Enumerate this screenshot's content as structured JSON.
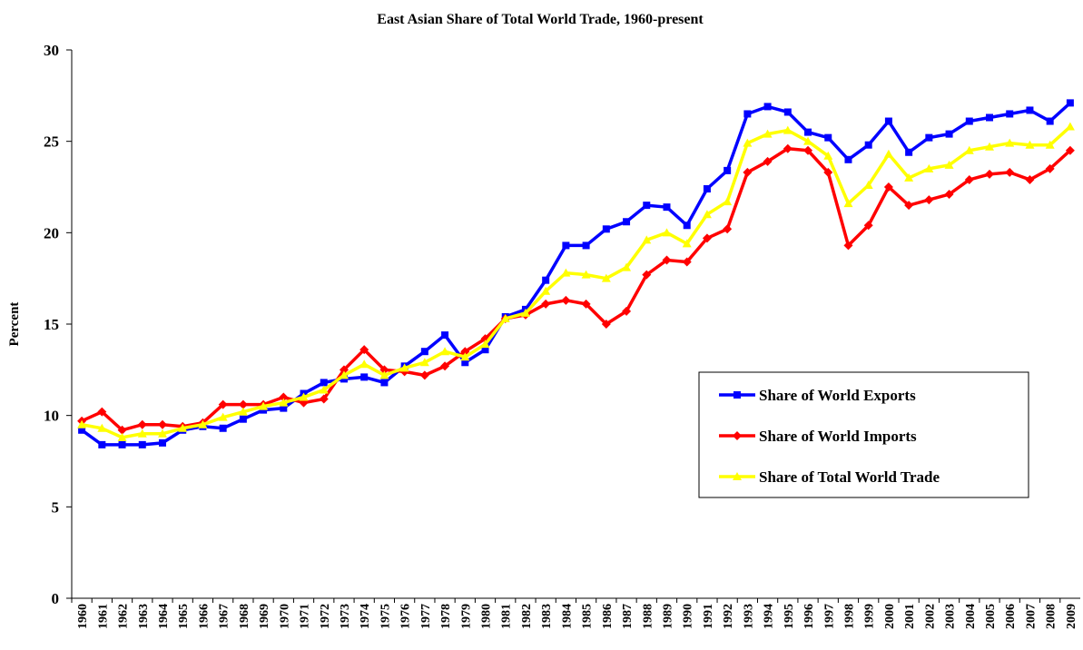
{
  "chart_data": {
    "type": "line",
    "title": "East Asian Share of Total World Trade, 1960-present",
    "y_label": "Percent",
    "categories": [
      "1960",
      "1961",
      "1962",
      "1963",
      "1964",
      "1965",
      "1966",
      "1967",
      "1968",
      "1969",
      "1970",
      "1971",
      "1972",
      "1973",
      "1974",
      "1975",
      "1976",
      "1977",
      "1978",
      "1979",
      "1980",
      "1981",
      "1982",
      "1983",
      "1984",
      "1985",
      "1986",
      "1987",
      "1988",
      "1989",
      "1990",
      "1991",
      "1992",
      "1993",
      "1994",
      "1995",
      "1996",
      "1997",
      "1998",
      "1999",
      "2000",
      "2001",
      "2002",
      "2003",
      "2004",
      "2005",
      "2006",
      "2007",
      "2008",
      "2009"
    ],
    "series": [
      {
        "name": "Share of World Exports",
        "color": "#0000ff",
        "marker": "square",
        "values": [
          9.2,
          8.4,
          8.4,
          8.4,
          8.5,
          9.2,
          9.4,
          9.3,
          9.8,
          10.3,
          10.4,
          11.2,
          11.8,
          12.0,
          12.1,
          11.8,
          12.7,
          13.5,
          14.4,
          12.9,
          13.6,
          15.4,
          15.8,
          17.4,
          19.3,
          19.3,
          20.2,
          20.6,
          21.5,
          21.4,
          20.4,
          22.4,
          23.4,
          26.5,
          26.9,
          26.6,
          25.5,
          25.2,
          24.0,
          24.8,
          26.1,
          24.4,
          25.2,
          25.4,
          26.1,
          26.3,
          26.5,
          26.7,
          26.1,
          27.1
        ]
      },
      {
        "name": "Share of World Imports",
        "color": "#ff0000",
        "marker": "diamond",
        "values": [
          9.7,
          10.2,
          9.2,
          9.5,
          9.5,
          9.4,
          9.6,
          10.6,
          10.6,
          10.6,
          11.0,
          10.7,
          10.9,
          12.5,
          13.6,
          12.5,
          12.4,
          12.2,
          12.7,
          13.5,
          14.2,
          15.3,
          15.5,
          16.1,
          16.3,
          16.1,
          15.0,
          15.7,
          17.7,
          18.5,
          18.4,
          19.7,
          20.2,
          23.3,
          23.9,
          24.6,
          24.5,
          23.3,
          19.3,
          20.4,
          22.5,
          21.5,
          21.8,
          22.1,
          22.9,
          23.2,
          23.3,
          22.9,
          23.5,
          24.5
        ]
      },
      {
        "name": "Share of Total World Trade",
        "color": "#ffff00",
        "marker": "triangle",
        "values": [
          9.5,
          9.3,
          8.8,
          9.0,
          9.0,
          9.3,
          9.5,
          9.9,
          10.2,
          10.5,
          10.7,
          11.0,
          11.4,
          12.2,
          12.8,
          12.2,
          12.6,
          12.9,
          13.5,
          13.2,
          13.9,
          15.3,
          15.6,
          16.8,
          17.8,
          17.7,
          17.5,
          18.1,
          19.6,
          20.0,
          19.4,
          21.0,
          21.7,
          24.9,
          25.4,
          25.6,
          25.0,
          24.2,
          21.6,
          22.6,
          24.3,
          23.0,
          23.5,
          23.7,
          24.5,
          24.7,
          24.9,
          24.8,
          24.8,
          25.8
        ]
      }
    ],
    "ylim": [
      0,
      30
    ],
    "yticks": [
      0,
      5,
      10,
      15,
      20,
      25,
      30
    ],
    "grid": false,
    "legend": "right"
  }
}
